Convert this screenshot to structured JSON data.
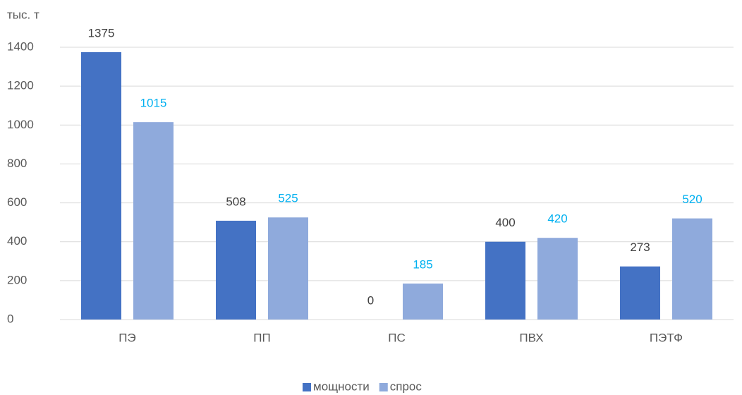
{
  "chart_data": {
    "type": "bar",
    "y_axis_label": "тыс. т",
    "categories": [
      "ПЭ",
      "ПП",
      "ПС",
      "ПВХ",
      "ПЭТФ"
    ],
    "series": [
      {
        "name": "мощности",
        "color": "#4472c4",
        "label_color": "#404040",
        "values": [
          1375,
          508,
          0,
          400,
          273
        ]
      },
      {
        "name": "спрос",
        "color": "#8faadc",
        "label_color": "#00b0f0",
        "values": [
          1015,
          525,
          185,
          420,
          520
        ]
      }
    ],
    "ylim": [
      0,
      1400
    ],
    "yticks": [
      0,
      200,
      400,
      600,
      800,
      1000,
      1200,
      1400
    ],
    "grid": true,
    "legend": "bottom"
  }
}
